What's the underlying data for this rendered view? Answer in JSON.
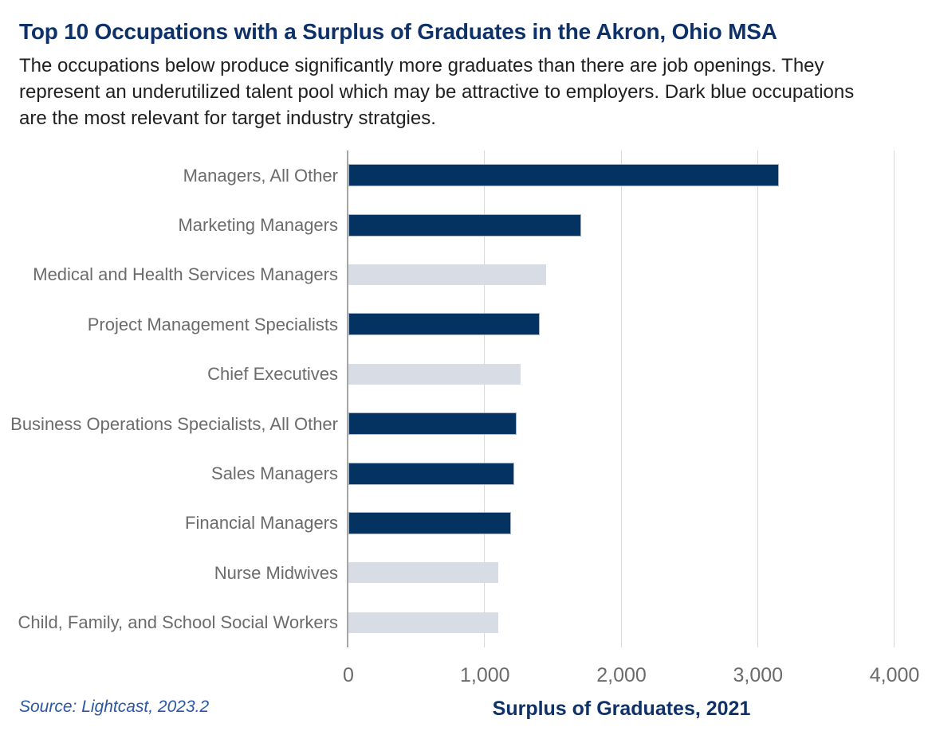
{
  "header": {
    "title": "Top 10 Occupations with a Surplus of Graduates in the Akron, Ohio MSA",
    "subtitle": "The occupations below produce significantly more graduates than there are job openings. They\nrepresent an underutilized talent pool which may be attractive to employers. Dark blue occupations\nare the most relevant for target industry stratgies."
  },
  "footer": {
    "source": "Source: Lightcast, 2023.2"
  },
  "colors": {
    "title_navy": "#0d3168",
    "bar_dark": "#053361",
    "bar_dark_border": "#a7b4c6",
    "bar_light": "#d7dce5",
    "label_gray": "#6b6b6b",
    "gridline": "#d9d9d9",
    "axis_line": "#a6a6a6",
    "source_blue": "#2a57a5"
  },
  "chart_data": {
    "type": "bar",
    "orientation": "horizontal",
    "title": "Top 10 Occupations with a Surplus of Graduates in the Akron, Ohio MSA",
    "xlabel": "Surplus of Graduates, 2021",
    "ylabel": "",
    "xlim": [
      0,
      4000
    ],
    "x_ticks": [
      0,
      1000,
      2000,
      3000,
      4000
    ],
    "x_tick_labels": [
      "0",
      "1,000",
      "2,000",
      "3,000",
      "4,000"
    ],
    "grid": true,
    "legend": false,
    "categories": [
      "Managers, All Other",
      "Marketing Managers",
      "Medical and Health Services Managers",
      "Project Management Specialists",
      "Chief Executives",
      "Business Operations Specialists, All Other",
      "Sales Managers",
      "Financial Managers",
      "Nurse Midwives",
      "Child, Family, and School Social Workers"
    ],
    "values": [
      3140,
      1695,
      1450,
      1390,
      1260,
      1220,
      1200,
      1180,
      1095,
      1100
    ],
    "highlighted": [
      true,
      true,
      false,
      true,
      false,
      true,
      true,
      true,
      false,
      false
    ],
    "highlight_meaning": "Dark blue occupations are the most relevant for target industry stratgies."
  }
}
